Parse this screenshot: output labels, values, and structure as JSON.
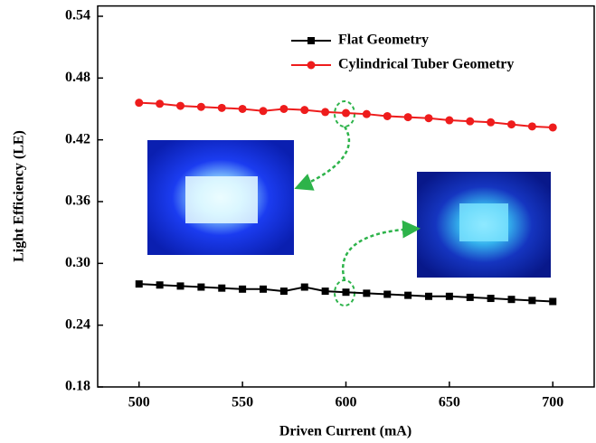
{
  "chart_data": {
    "type": "line",
    "x_label": "Driven Current (mA)",
    "y_label": "Light Efficiency (LE)",
    "x": [
      500,
      510,
      520,
      530,
      540,
      550,
      560,
      570,
      580,
      590,
      600,
      610,
      620,
      630,
      640,
      650,
      660,
      670,
      680,
      690,
      700
    ],
    "series": [
      {
        "name": "Flat Geometry",
        "color": "#000000",
        "marker": "square",
        "values": [
          0.28,
          0.279,
          0.278,
          0.277,
          0.276,
          0.275,
          0.275,
          0.273,
          0.277,
          0.273,
          0.272,
          0.271,
          0.27,
          0.269,
          0.268,
          0.268,
          0.267,
          0.266,
          0.265,
          0.264,
          0.263
        ]
      },
      {
        "name": "Cylindrical Tuber Geometry",
        "color": "#ee1c1c",
        "marker": "circle",
        "values": [
          0.456,
          0.455,
          0.453,
          0.452,
          0.451,
          0.45,
          0.448,
          0.45,
          0.449,
          0.447,
          0.446,
          0.445,
          0.443,
          0.442,
          0.441,
          0.439,
          0.438,
          0.437,
          0.435,
          0.433,
          0.432
        ]
      }
    ],
    "xlim": [
      480,
      720
    ],
    "xticks": [
      500,
      550,
      600,
      650,
      700
    ],
    "ylim": [
      0.18,
      0.55
    ],
    "yticks": [
      0.18,
      0.24,
      {
        "value": 0.3,
        "label": "0.30"
      },
      0.36,
      0.42,
      0.48,
      0.54
    ]
  }
}
